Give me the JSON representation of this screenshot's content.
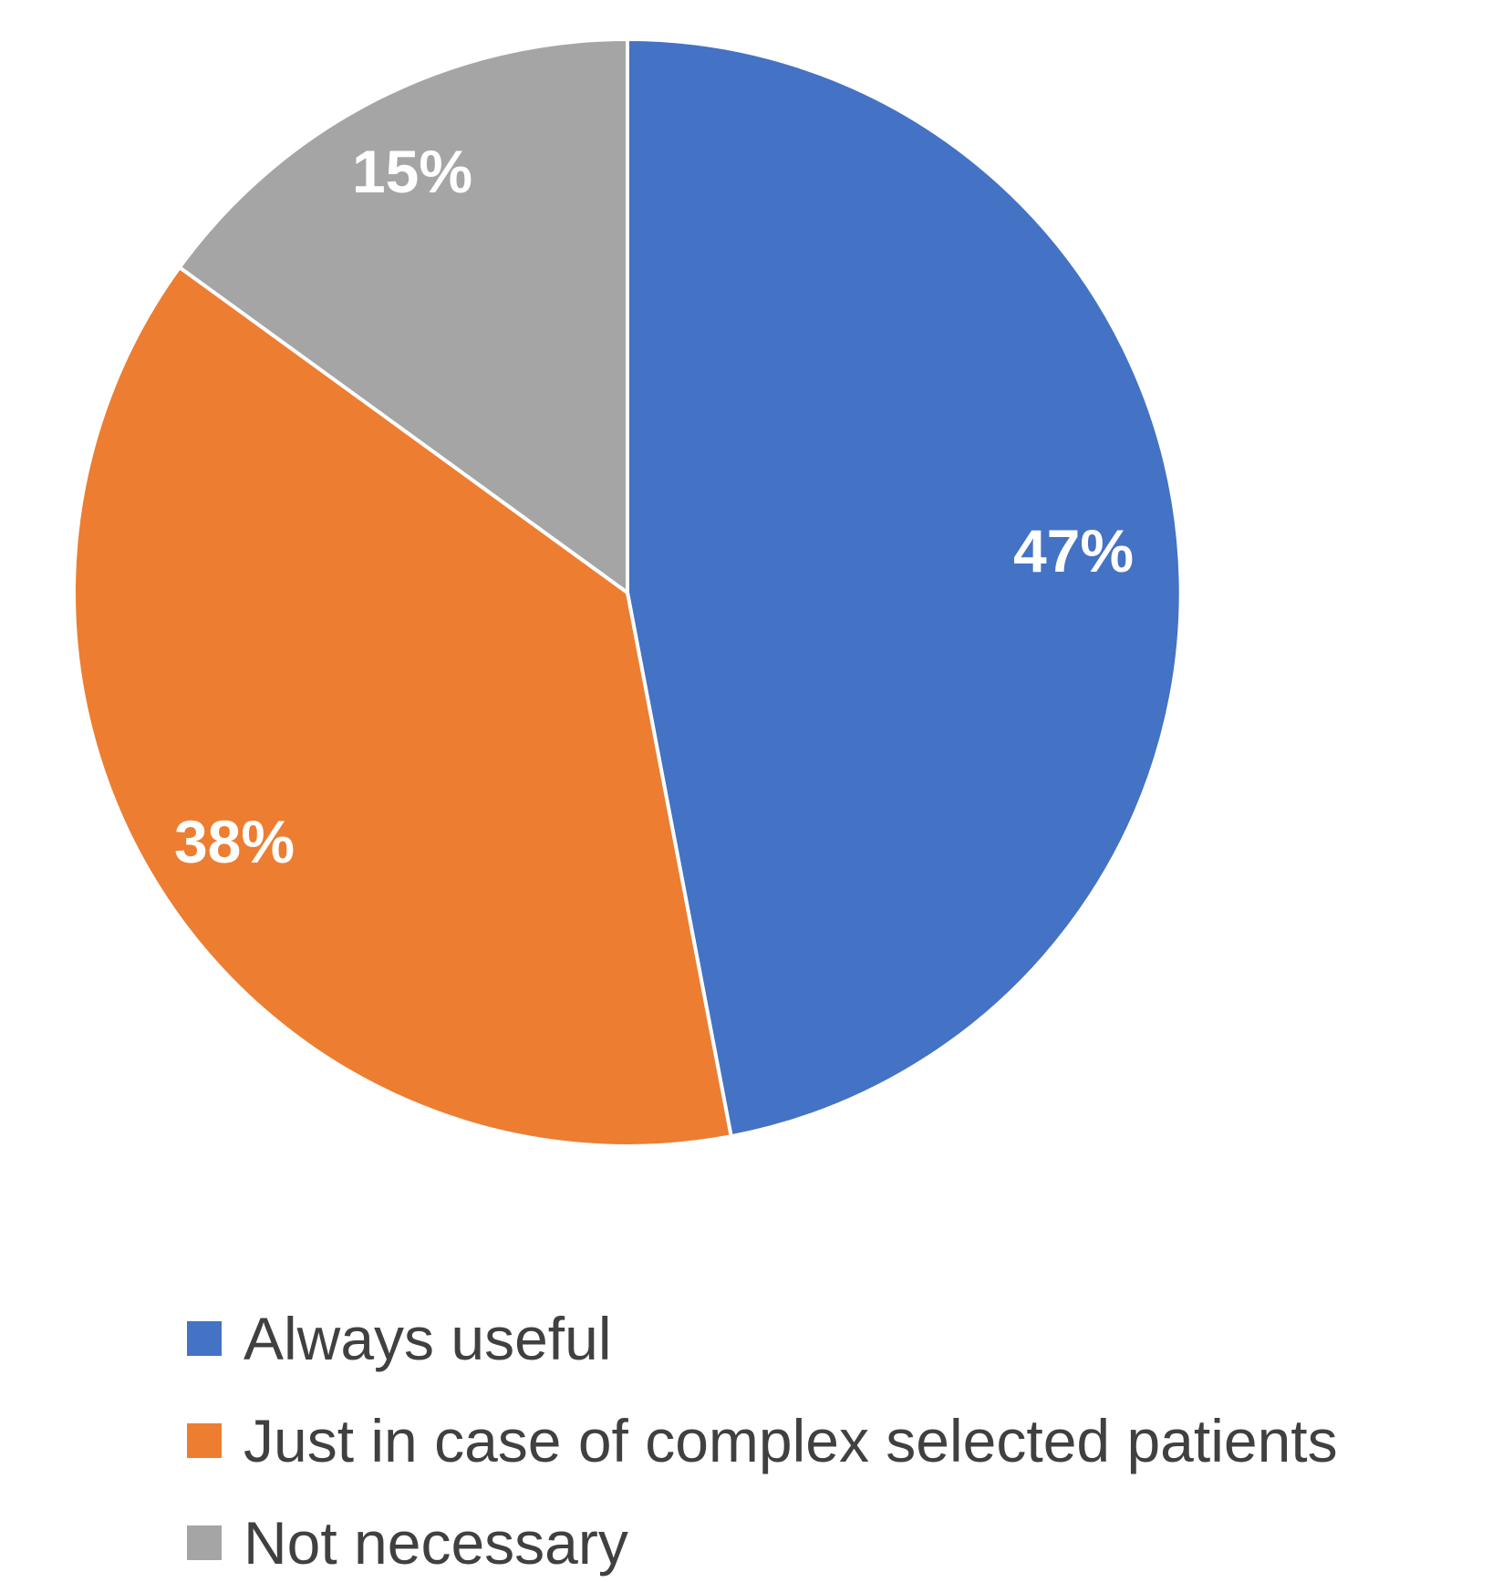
{
  "chart_data": {
    "type": "pie",
    "title": "",
    "categories": [
      "Always useful",
      "Just in case of complex selected patients",
      "Not necessary"
    ],
    "values": [
      47,
      38,
      15
    ],
    "unit": "percent",
    "slice_labels": [
      "47%",
      "38%",
      "15%"
    ],
    "colors": [
      "#4472C4",
      "#ED7D31",
      "#A5A5A5"
    ],
    "start_angle_deg": 0,
    "direction": "clockwise",
    "slice_border_color": "#FFFFFF",
    "data_label_color": "#FFFFFF",
    "legend_position": "bottom-left",
    "grid": "off"
  },
  "legend": {
    "text_color": "#404040",
    "items": [
      {
        "label": "Always useful",
        "color": "#4472C4",
        "swatch": "square"
      },
      {
        "label": "Just in case of complex selected patients",
        "color": "#ED7D31",
        "swatch": "square"
      },
      {
        "label": "Not necessary",
        "color": "#A5A5A5",
        "swatch": "square"
      }
    ]
  }
}
